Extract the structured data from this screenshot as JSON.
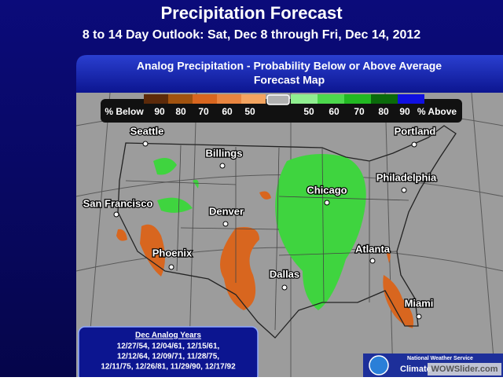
{
  "header": {
    "title": "Precipitation Forecast",
    "subtitle": "8 to 14 Day Outlook: Sat, Dec 8 through Fri, Dec 14, 2012"
  },
  "panel": {
    "title_line1": "Analog Precipitation -  Probability Below or Above Average",
    "title_line2": "Forecast Map"
  },
  "legend": {
    "below_label": "% Below",
    "below_ticks": [
      "90",
      "80",
      "70",
      "60",
      "50"
    ],
    "above_ticks": [
      "50",
      "60",
      "70",
      "80",
      "90"
    ],
    "above_label": "% Above"
  },
  "cities": [
    "Seattle",
    "Billings",
    "Portland",
    "Philadelphia",
    "San Francisco",
    "Denver",
    "Chicago",
    "Phoenix",
    "Atlanta",
    "Dallas",
    "Miami"
  ],
  "analog_years": {
    "title": "Dec Analog Years",
    "lines": [
      "12/27/54, 12/04/61, 12/15/61,",
      "12/12/64, 12/09/71, 11/28/75,",
      "12/11/75, 12/26/81, 11/29/90, 12/17/92"
    ]
  },
  "footer": {
    "agency": "National Weather Service",
    "label": "Climate",
    "watermark": "WOWSlider.com"
  }
}
